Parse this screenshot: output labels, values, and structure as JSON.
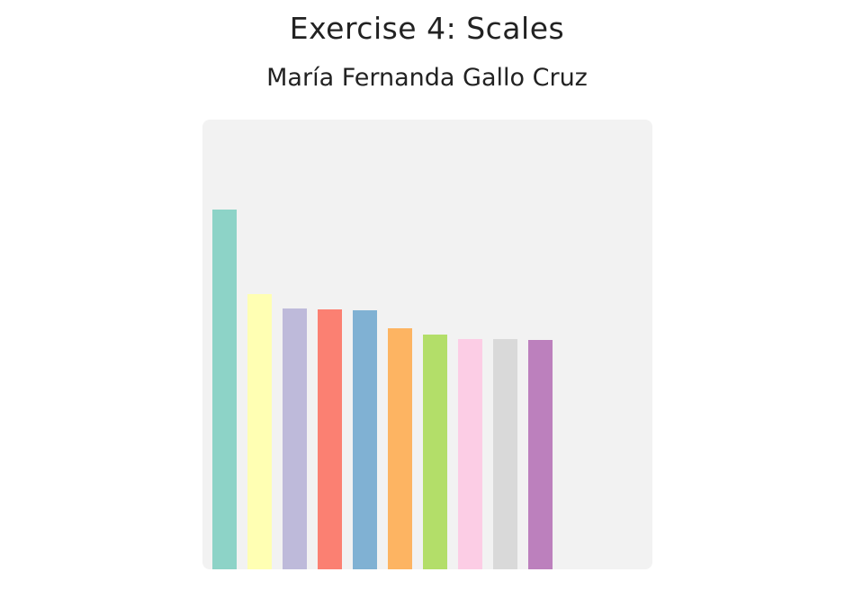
{
  "header": {
    "title": "Exercise 4: Scales",
    "subtitle": "María Fernanda Gallo Cruz"
  },
  "chart_data": {
    "type": "bar",
    "categories": [
      "",
      "",
      "",
      "",
      "",
      "",
      "",
      "",
      "",
      ""
    ],
    "values": [
      400,
      306,
      290,
      289,
      288,
      268,
      261,
      256,
      256,
      255
    ],
    "colors": [
      "#8dd3c7",
      "#ffffb3",
      "#bebada",
      "#fb8072",
      "#80b1d3",
      "#fdb462",
      "#b3de69",
      "#fccde5",
      "#d9d9d9",
      "#bc80bd"
    ],
    "title": "",
    "xlabel": "",
    "ylabel": "",
    "ylim": [
      0,
      500
    ],
    "grid": false,
    "legend": "none"
  }
}
